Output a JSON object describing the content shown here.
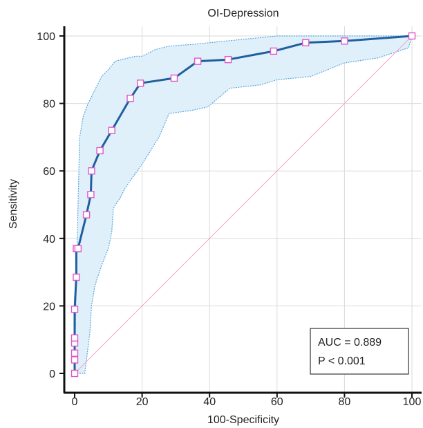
{
  "chart_data": {
    "type": "line",
    "title": "OI-Depression",
    "xlabel": "100-Specificity",
    "ylabel": "Sensitivity",
    "xlim": [
      0,
      100
    ],
    "ylim": [
      0,
      100
    ],
    "x_ticks": [
      "0",
      "20",
      "40",
      "60",
      "80",
      "100"
    ],
    "y_ticks": [
      "0",
      "20",
      "40",
      "60",
      "80",
      "100"
    ],
    "grid": true,
    "roc_curve": {
      "x": [
        0,
        0,
        0,
        0,
        0,
        0,
        0.5,
        0.5,
        1,
        3.5,
        4.8,
        5,
        7.5,
        11,
        16.5,
        19.5,
        29.5,
        36.5,
        45.5,
        59,
        68.5,
        80,
        100
      ],
      "y": [
        0,
        4,
        6,
        9,
        10.5,
        19,
        28.5,
        37,
        37,
        47,
        53,
        60,
        66,
        72,
        81.5,
        86,
        87.5,
        92.5,
        93,
        95.5,
        98,
        98.5,
        100
      ]
    },
    "confidence_band": {
      "upper": {
        "x": [
          0,
          0.5,
          1,
          1.5,
          2.5,
          4,
          6,
          8,
          10,
          12,
          14,
          16,
          18,
          20,
          24,
          28,
          35,
          45,
          55,
          60,
          70,
          80,
          90,
          100
        ],
        "y": [
          0,
          28,
          50,
          70,
          76,
          80,
          84,
          88,
          90,
          92.5,
          93,
          93.5,
          94,
          94,
          96,
          97,
          97.5,
          98.5,
          99.5,
          100,
          100,
          100,
          100,
          100
        ]
      },
      "lower": {
        "x": [
          0,
          2,
          3,
          4.5,
          5,
          6,
          8,
          10,
          11,
          11.5,
          13.5,
          15,
          20,
          25,
          28,
          35,
          39.5,
          46,
          55,
          60,
          70,
          80,
          90,
          99,
          100
        ],
        "y": [
          0,
          0,
          0,
          12,
          20,
          26,
          32,
          37,
          42,
          49,
          52,
          55,
          62,
          70,
          77,
          78,
          79,
          84.5,
          85.5,
          87,
          88,
          92,
          93.5,
          96.5,
          100
        ]
      }
    },
    "reference_line": {
      "x": [
        0,
        100
      ],
      "y": [
        0,
        100
      ]
    },
    "annotation": {
      "auc": "AUC = 0.889",
      "p": "P < 0.001"
    },
    "colors": {
      "curve": "#1f5f9e",
      "marker_edge": "#e055c8",
      "marker_fill": "#ffffff",
      "band_fill": "#dff0fb",
      "band_edge": "#5aa7d8",
      "reference": "#f4a8c8",
      "grid": "#d9d9d9"
    }
  }
}
